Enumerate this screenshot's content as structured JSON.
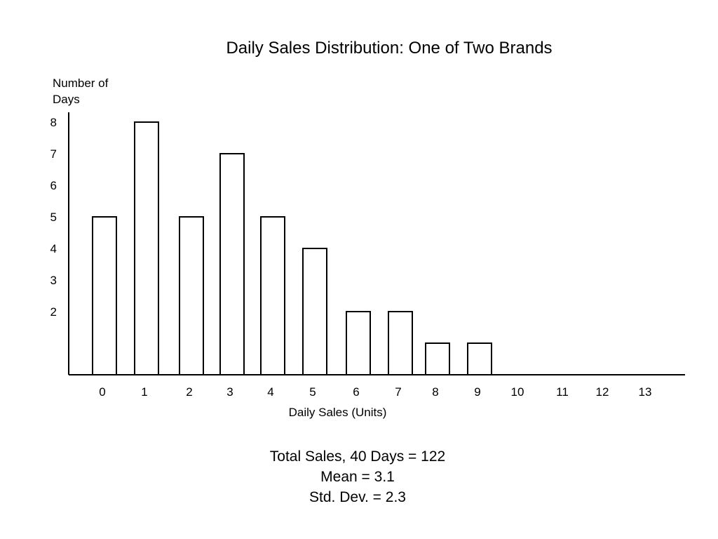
{
  "chart_data": {
    "type": "bar",
    "title": "Daily Sales Distribution:  One of Two Brands",
    "xlabel": "Daily Sales (Units)",
    "ylabel": "Number of Days",
    "categories": [
      "0",
      "1",
      "2",
      "3",
      "4",
      "5",
      "6",
      "7",
      "8",
      "9",
      "10",
      "11",
      "12",
      "13"
    ],
    "values": [
      5,
      8,
      5,
      7,
      5,
      4,
      2,
      2,
      1,
      1,
      0,
      0,
      0,
      0
    ],
    "yticks": [
      "8",
      "7",
      "6",
      "5",
      "4",
      "3",
      "2"
    ],
    "ylim": [
      0,
      8
    ],
    "grid": false,
    "legend": "none"
  },
  "stats": {
    "total": "Total Sales, 40 Days = 122",
    "mean": "Mean = 3.1",
    "std": "Std. Dev. = 2.3"
  },
  "colors": {
    "bar_fill": "#ffffff",
    "stroke": "#000000"
  }
}
